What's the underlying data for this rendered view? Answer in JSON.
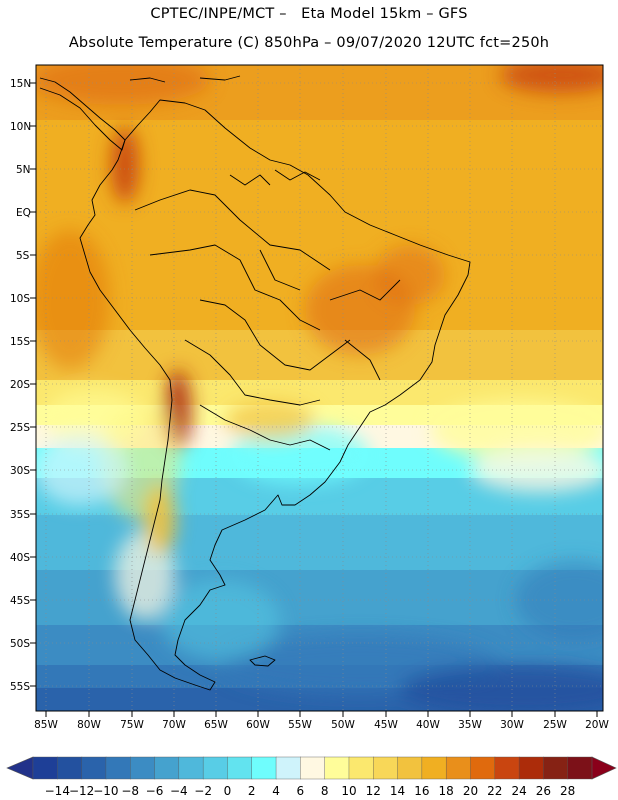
{
  "header": {
    "line1": "CPTEC/INPE/MCT –   Eta Model 15km – GFS",
    "line2": "Absolute Temperature (C) 850hPa – 09/07/2020 12UTC fct=250h"
  },
  "axes": {
    "lat_labels": [
      "15N",
      "10N",
      "5N",
      "EQ",
      "5S",
      "10S",
      "15S",
      "20S",
      "25S",
      "30S",
      "35S",
      "40S",
      "45S",
      "50S",
      "55S"
    ],
    "lon_labels": [
      "85W",
      "80W",
      "75W",
      "70W",
      "65W",
      "60W",
      "55W",
      "50W",
      "45W",
      "40W",
      "35W",
      "30W",
      "25W",
      "20W"
    ]
  },
  "colorbar": {
    "labels": [
      "−14",
      "−12",
      "−10",
      "−8",
      "−6",
      "−4",
      "−2",
      "0",
      "2",
      "4",
      "6",
      "8",
      "10",
      "12",
      "14",
      "16",
      "18",
      "20",
      "22",
      "24",
      "26",
      "28"
    ],
    "colors": [
      "#1e3f97",
      "#23519f",
      "#2a63ab",
      "#3378b8",
      "#3c8cc3",
      "#45a2ce",
      "#4fb8db",
      "#58cde6",
      "#62e3ef",
      "#6ffdfd",
      "#cff3fb",
      "#fff8e2",
      "#fffd9a",
      "#fbe86e",
      "#f8d758",
      "#f2c23e",
      "#f0af22",
      "#e98f1b",
      "#e06a0d",
      "#c94510",
      "#ac2c0a",
      "#862214",
      "#7c1118"
    ],
    "under_color": "#22328a",
    "over_color": "#8a001a"
  }
}
